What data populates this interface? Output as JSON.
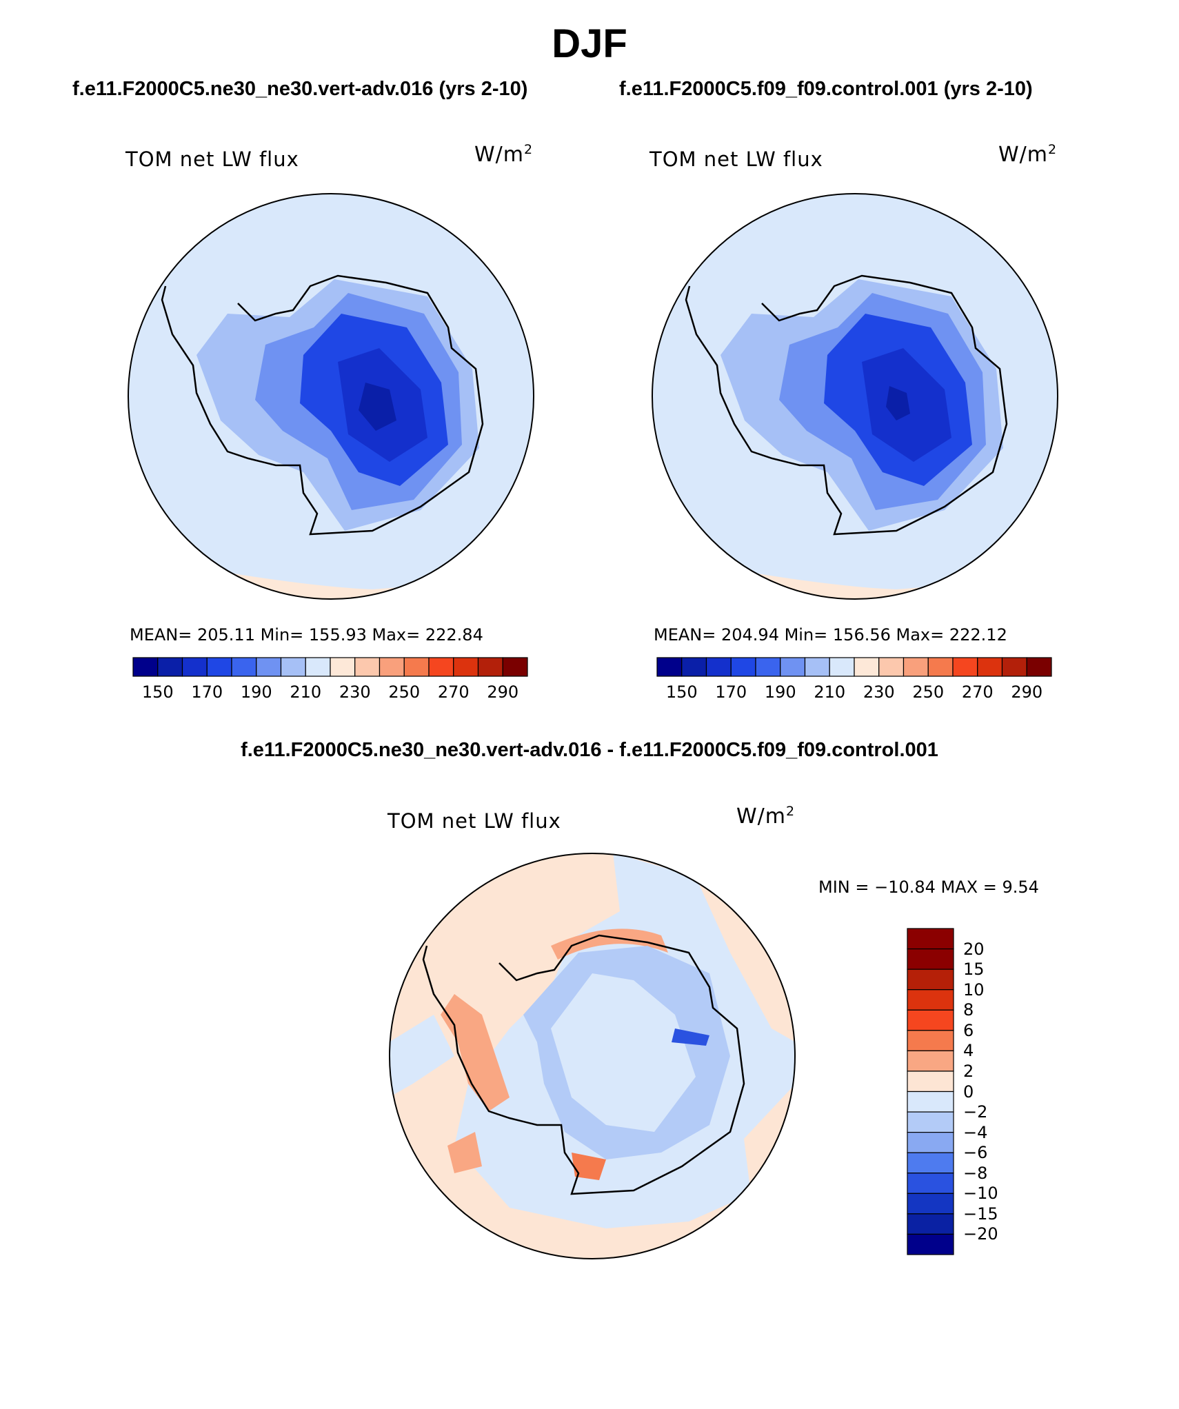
{
  "figure": {
    "season": "DJF",
    "case_title_left": "f.e11.F2000C5.ne30_ne30.vert-adv.016 (yrs 2-10)",
    "case_title_right": "f.e11.F2000C5.f09_f09.control.001 (yrs 2-10)",
    "diff_title": "f.e11.F2000C5.ne30_ne30.vert-adv.016 - f.e11.F2000C5.f09_f09.control.001"
  },
  "panels": [
    {
      "variable": "TOM net LW flux",
      "units": "W/m",
      "units_exp": "2",
      "stats": "MEAN= 205.11   Min= 155.93   Max= 222.84"
    },
    {
      "variable": "TOM net LW flux",
      "units": "W/m",
      "units_exp": "2",
      "stats": "MEAN= 204.94   Min= 156.56   Max= 222.12"
    }
  ],
  "diff_panel": {
    "variable": "TOM net LW flux",
    "units": "W/m",
    "units_exp": "2",
    "stats": "MIN = −10.84 MAX =    9.54"
  },
  "abs_colorbar": {
    "colors": [
      "#00008b",
      "#0a1fa8",
      "#1430cc",
      "#1f47e5",
      "#3a64ee",
      "#6f92f2",
      "#a6c0f6",
      "#d9e8fb",
      "#fde8d8",
      "#fcc8ad",
      "#f9a07c",
      "#f57a4d",
      "#f5461f",
      "#dc330e",
      "#b3200a",
      "#7a0000"
    ],
    "labels": [
      "150",
      "170",
      "190",
      "210",
      "230",
      "250",
      "270",
      "290"
    ]
  },
  "diff_colorbar": {
    "colors_top_to_bottom": [
      "#8b0000",
      "#b52008",
      "#dc330e",
      "#f5461f",
      "#f57a4d",
      "#f9a783",
      "#fde5d4",
      "#d9e8fb",
      "#b3cbf7",
      "#89a9f2",
      "#4e7bef",
      "#2a52e0",
      "#1436c2",
      "#0a21a3",
      "#00008b"
    ],
    "labels": [
      "20",
      "15",
      "10",
      "8",
      "6",
      "4",
      "2",
      "0",
      "−2",
      "−4",
      "−6",
      "−8",
      "−10",
      "−15",
      "−20"
    ]
  }
}
